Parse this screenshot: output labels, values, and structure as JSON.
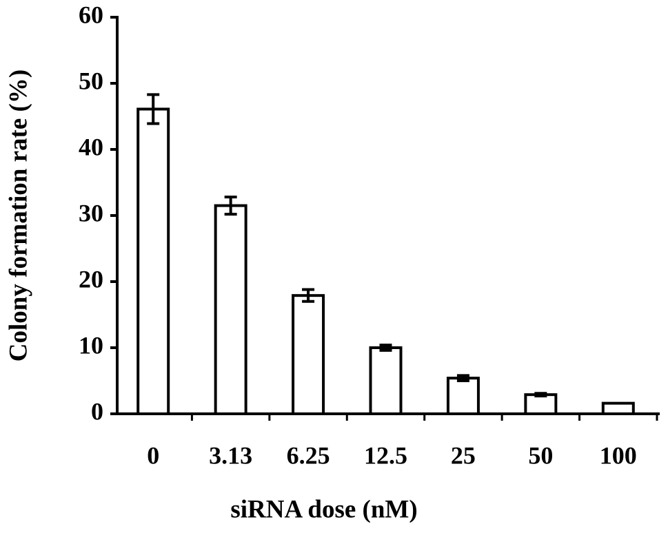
{
  "chart_data": {
    "type": "bar",
    "xlabel": "siRNA dose (nM)",
    "ylabel": "Colony formation rate (%)",
    "categories": [
      "0",
      "3.13",
      "6.25",
      "12.5",
      "25",
      "50",
      "100"
    ],
    "values": [
      46.1,
      31.5,
      17.9,
      10.0,
      5.4,
      2.9,
      1.6
    ],
    "errors": [
      2.2,
      1.3,
      0.9,
      0.4,
      0.4,
      0.2,
      null
    ],
    "color": "#ffffff",
    "ylim": [
      0,
      60
    ],
    "yticks": [
      0,
      10,
      20,
      30,
      40,
      50,
      60
    ]
  }
}
